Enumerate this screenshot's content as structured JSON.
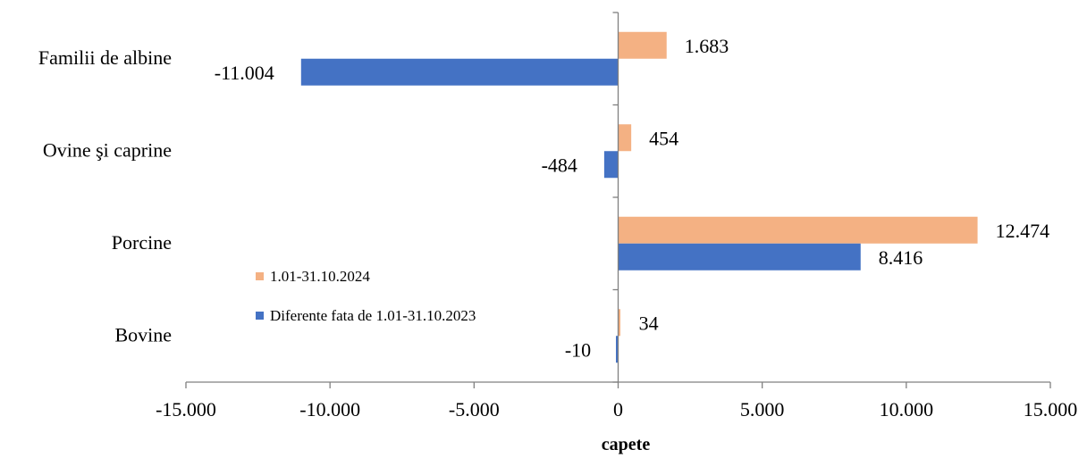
{
  "chart_data": {
    "type": "bar",
    "orientation": "horizontal",
    "categories": [
      "Bovine",
      "Porcine",
      "Ovine şi caprine",
      "Familii de albine"
    ],
    "series": [
      {
        "name": "1.01-31.10.2024",
        "color": "#F4B183",
        "values": [
          34,
          12474,
          454,
          1683
        ],
        "labels": [
          "34",
          "12.474",
          "454",
          "1.683"
        ]
      },
      {
        "name": "Diferente fata de 1.01-31.10.2023",
        "color": "#4472C4",
        "values": [
          -10,
          8416,
          -484,
          -11004
        ],
        "labels": [
          "-10",
          "8.416",
          "-484",
          "-11.004"
        ]
      }
    ],
    "xlim": [
      -15000,
      15000
    ],
    "xticks": [
      -15000,
      -10000,
      -5000,
      0,
      5000,
      10000,
      15000
    ],
    "xtick_labels": [
      "-15.000",
      "-10.000",
      "-5.000",
      "0",
      "5.000",
      "10.000",
      "15.000"
    ],
    "xlabel": "capete",
    "ylabel": "",
    "title": "",
    "legend_position": "center-left",
    "grid": false
  }
}
